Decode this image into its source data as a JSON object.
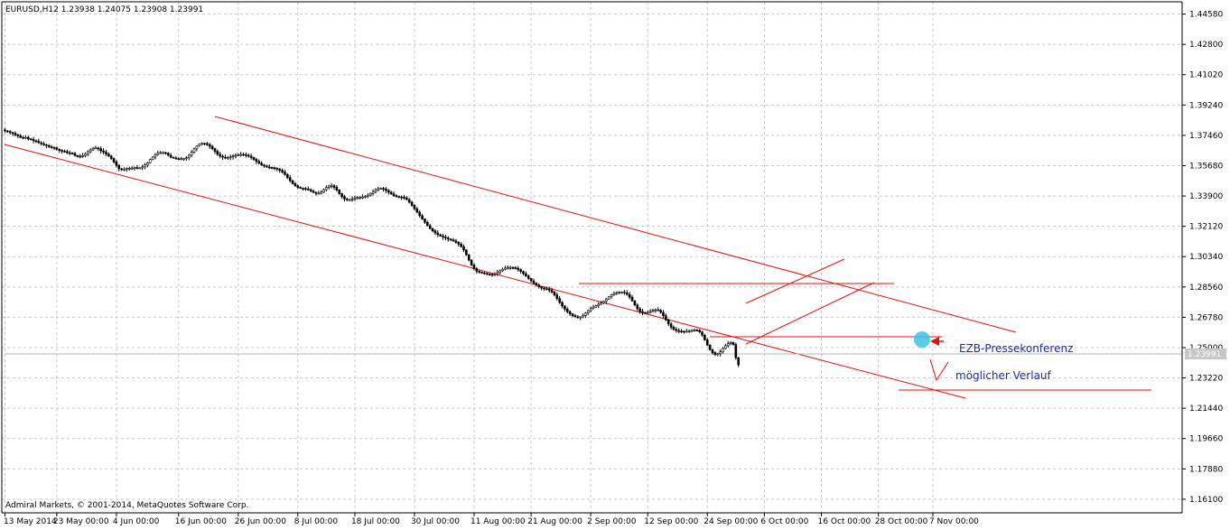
{
  "window": {
    "header": "EURUSD,H12  1.23938 1.24075 1.23908 1.23991",
    "copyright": "Admiral Markets, © 2001-2014, MetaQuotes Software Corp."
  },
  "colors": {
    "background": "#ffffff",
    "grid": "#c8c8c8",
    "candle": "#000000",
    "trendline": "#e01010",
    "annotation_text": "#1f2bb0",
    "marker_fill": "#39c6e0",
    "price_line": "#b4b4b4"
  },
  "chart_data": {
    "type": "candlestick",
    "symbol": "EURUSD",
    "timeframe": "H12",
    "last_quote": {
      "open": 1.23938,
      "high": 1.24075,
      "low": 1.23908,
      "close": 1.23991
    },
    "current_price": 1.23991,
    "current_price_label": "1.23991",
    "ylim": [
      1.153,
      1.453
    ],
    "y_ticks": [
      "1.44580",
      "1.42800",
      "1.41020",
      "1.39240",
      "1.37460",
      "1.35680",
      "1.33900",
      "1.32120",
      "1.30340",
      "1.28560",
      "1.26780",
      "1.25000",
      "1.23220",
      "1.21440",
      "1.19660",
      "1.17880",
      "1.16100"
    ],
    "x_ticks": [
      "13 May 2014",
      "23 May 00:00",
      "4 Jun 00:00",
      "16 Jun 00:00",
      "26 Jun 00:00",
      "8 Jul 00:00",
      "18 Jul 00:00",
      "30 Jul 00:00",
      "11 Aug 00:00",
      "21 Aug 00:00",
      "2 Sep 00:00",
      "12 Sep 00:00",
      "24 Sep 00:00",
      "6 Oct 00:00",
      "16 Oct 00:00",
      "28 Oct 00:00",
      "7 Nov 00:00"
    ],
    "x_tick_index": [
      0,
      20,
      43,
      67,
      90,
      113,
      135,
      158,
      181,
      203,
      226,
      248,
      271,
      293,
      315,
      337,
      358
    ],
    "closes": [
      1.3772,
      1.3768,
      1.3762,
      1.3758,
      1.3749,
      1.3743,
      1.3734,
      1.373,
      1.3734,
      1.3725,
      1.3722,
      1.3715,
      1.3711,
      1.3703,
      1.3697,
      1.3691,
      1.3686,
      1.3679,
      1.3675,
      1.3673,
      1.3664,
      1.3658,
      1.3653,
      1.3651,
      1.3644,
      1.3642,
      1.364,
      1.3627,
      1.3624,
      1.3622,
      1.3627,
      1.3638,
      1.365,
      1.3661,
      1.3671,
      1.3672,
      1.3667,
      1.3655,
      1.3648,
      1.3636,
      1.3624,
      1.361,
      1.359,
      1.357,
      1.355,
      1.3545,
      1.3548,
      1.3553,
      1.3553,
      1.3554,
      1.3557,
      1.3554,
      1.3555,
      1.3561,
      1.3572,
      1.3585,
      1.3604,
      1.3619,
      1.3632,
      1.3641,
      1.3645,
      1.3645,
      1.3641,
      1.3629,
      1.3617,
      1.3613,
      1.3609,
      1.3608,
      1.361,
      1.361,
      1.3615,
      1.3629,
      1.3647,
      1.3667,
      1.3683,
      1.3694,
      1.3699,
      1.3698,
      1.3692,
      1.3681,
      1.3668,
      1.3652,
      1.3635,
      1.3624,
      1.3618,
      1.3615,
      1.3615,
      1.362,
      1.3625,
      1.3629,
      1.3632,
      1.3634,
      1.3633,
      1.3629,
      1.3624,
      1.3616,
      1.3605,
      1.3593,
      1.3582,
      1.3572,
      1.3566,
      1.356,
      1.3558,
      1.3556,
      1.3553,
      1.3548,
      1.3541,
      1.353,
      1.3516,
      1.3498,
      1.348,
      1.3463,
      1.345,
      1.344,
      1.3436,
      1.3434,
      1.3431,
      1.3427,
      1.3419,
      1.3411,
      1.3405,
      1.3406,
      1.3413,
      1.3427,
      1.344,
      1.3449,
      1.345,
      1.3441,
      1.3425,
      1.3404,
      1.3386,
      1.3373,
      1.3368,
      1.3368,
      1.3373,
      1.3379,
      1.3382,
      1.3383,
      1.3384,
      1.3388,
      1.3395,
      1.3405,
      1.3415,
      1.3426,
      1.3433,
      1.3435,
      1.3431,
      1.3422,
      1.3412,
      1.3402,
      1.3393,
      1.3387,
      1.3385,
      1.3383,
      1.3379,
      1.3369,
      1.3353,
      1.3335,
      1.3315,
      1.3295,
      1.3275,
      1.3255,
      1.3236,
      1.3216,
      1.3199,
      1.3185,
      1.3173,
      1.3163,
      1.3155,
      1.3149,
      1.3143,
      1.3137,
      1.3132,
      1.3126,
      1.3118,
      1.3108,
      1.3093,
      1.3073,
      1.3045,
      1.3014,
      1.2985,
      1.2963,
      1.2949,
      1.2943,
      1.2939,
      1.2936,
      1.2932,
      1.293,
      1.2929,
      1.2933,
      1.2941,
      1.2951,
      1.296,
      1.2967,
      1.2971,
      1.2971,
      1.2969,
      1.2966,
      1.2958,
      1.2947,
      1.2934,
      1.292,
      1.2906,
      1.2892,
      1.2879,
      1.2867,
      1.2857,
      1.285,
      1.2845,
      1.2842,
      1.2837,
      1.2826,
      1.2809,
      1.2788,
      1.2765,
      1.2744,
      1.2726,
      1.2711,
      1.2698,
      1.2688,
      1.2681,
      1.2677,
      1.268,
      1.2689,
      1.2703,
      1.2717,
      1.2729,
      1.2738,
      1.2746,
      1.2754,
      1.2762,
      1.2772,
      1.2785,
      1.2798,
      1.2809,
      1.2818,
      1.2823,
      1.2826,
      1.2826,
      1.2822,
      1.2812,
      1.2796,
      1.2774,
      1.275,
      1.2728,
      1.2712,
      1.2705,
      1.2704,
      1.2707,
      1.2713,
      1.2719,
      1.2722,
      1.2719,
      1.2707,
      1.2687,
      1.2662,
      1.2639,
      1.262,
      1.2607,
      1.26,
      1.2597,
      1.2596,
      1.2595,
      1.2595,
      1.2597,
      1.26,
      1.2603,
      1.2602,
      1.2592,
      1.2573,
      1.2545,
      1.2515,
      1.2488,
      1.247,
      1.246,
      1.2464,
      1.2475,
      1.2495,
      1.2511,
      1.2523,
      1.253,
      1.2518,
      1.244,
      1.2399
    ],
    "annotations": [
      {
        "text": "EZB-Pressekonferenz"
      },
      {
        "text": "möglicher Verlauf"
      }
    ]
  }
}
